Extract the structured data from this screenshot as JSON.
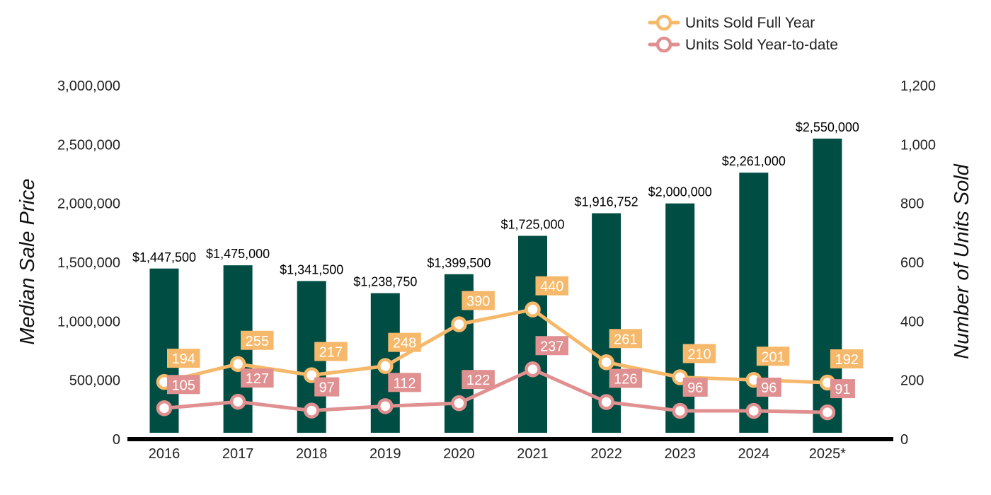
{
  "chart_data": {
    "type": "bar",
    "categories": [
      "2016",
      "2017",
      "2018",
      "2019",
      "2020",
      "2021",
      "2022",
      "2023",
      "2024",
      "2025*"
    ],
    "ylabel": "Median Sale Price",
    "y2label": "Number of Units Sold",
    "ylim": [
      0,
      3000000
    ],
    "y2lim": [
      0,
      1200
    ],
    "yticks": [
      "0",
      "500,000",
      "1,000,000",
      "1,500,000",
      "2,000,000",
      "2,500,000",
      "3,000,000"
    ],
    "y2ticks": [
      "0",
      "200",
      "400",
      "600",
      "800",
      "1,000",
      "1,200"
    ],
    "grid": false,
    "legend_position": "top-right",
    "bar_series": {
      "values": [
        1447500,
        1475000,
        1341500,
        1238750,
        1399500,
        1725000,
        1916752,
        2000000,
        2261000,
        2550000
      ],
      "labels": [
        "$1,447,500",
        "$1,475,000",
        "$1,341,500",
        "$1,238,750",
        "$1,399,500",
        "$1,725,000",
        "$1,916,752",
        "$2,000,000",
        "$2,261,000",
        "$2,550,000"
      ],
      "color": "#004d44"
    },
    "series": [
      {
        "name": "Units Sold Full Year",
        "axis": "right",
        "type": "line",
        "values": [
          194,
          255,
          217,
          248,
          390,
          440,
          261,
          210,
          201,
          192
        ],
        "color": "#f6b96b"
      },
      {
        "name": "Units Sold Year-to-date",
        "axis": "right",
        "type": "line",
        "values": [
          105,
          127,
          97,
          112,
          122,
          237,
          126,
          96,
          96,
          91
        ],
        "color": "#e09090"
      }
    ]
  }
}
